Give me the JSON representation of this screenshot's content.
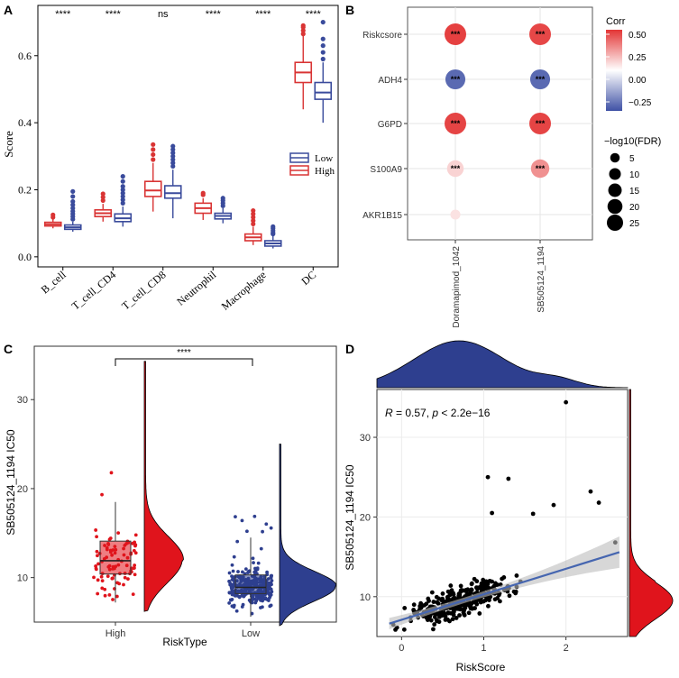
{
  "chart_data": [
    {
      "type": "box",
      "panel_label": "A",
      "ylabel": "Score",
      "ylim": [
        0,
        0.7
      ],
      "yticks": [
        "0.0",
        "0.2",
        "0.4",
        "0.6"
      ],
      "categories": [
        "B_cell",
        "T_cell_CD4",
        "T_cell_CD8",
        "Neutrophil",
        "Macrophage",
        "DC"
      ],
      "significance": [
        "****",
        "****",
        "ns",
        "****",
        "****",
        "****"
      ],
      "legend": {
        "low_label": "Low",
        "high_label": "High",
        "low_color": "#3a4b9c",
        "high_color": "#d93434"
      },
      "series": [
        {
          "name": "High",
          "color": "#d93434",
          "boxes": [
            {
              "min": 0.085,
              "q1": 0.092,
              "median": 0.097,
              "q3": 0.103,
              "max": 0.112,
              "outliers": [
                0.118,
                0.125
              ]
            },
            {
              "min": 0.105,
              "q1": 0.12,
              "median": 0.13,
              "q3": 0.14,
              "max": 0.158,
              "outliers": [
                0.168,
                0.178,
                0.188
              ]
            },
            {
              "min": 0.135,
              "q1": 0.18,
              "median": 0.198,
              "q3": 0.225,
              "max": 0.28,
              "outliers": [
                0.29,
                0.305,
                0.32,
                0.335
              ]
            },
            {
              "min": 0.11,
              "q1": 0.13,
              "median": 0.145,
              "q3": 0.16,
              "max": 0.175,
              "outliers": [
                0.185,
                0.19
              ]
            },
            {
              "min": 0.035,
              "q1": 0.048,
              "median": 0.058,
              "q3": 0.068,
              "max": 0.09,
              "outliers": [
                0.098,
                0.108,
                0.118,
                0.128,
                0.138
              ]
            },
            {
              "min": 0.44,
              "q1": 0.52,
              "median": 0.55,
              "q3": 0.58,
              "max": 0.66,
              "outliers": [
                0.665,
                0.675,
                0.685,
                0.69
              ]
            }
          ]
        },
        {
          "name": "Low",
          "color": "#3a4b9c",
          "boxes": [
            {
              "min": 0.075,
              "q1": 0.082,
              "median": 0.088,
              "q3": 0.095,
              "max": 0.105,
              "outliers": [
                0.112,
                0.12,
                0.128,
                0.136,
                0.145,
                0.155,
                0.165,
                0.18,
                0.195
              ]
            },
            {
              "min": 0.09,
              "q1": 0.105,
              "median": 0.115,
              "q3": 0.128,
              "max": 0.15,
              "outliers": [
                0.16,
                0.17,
                0.18,
                0.19,
                0.2,
                0.21,
                0.225,
                0.24
              ]
            },
            {
              "min": 0.115,
              "q1": 0.175,
              "median": 0.19,
              "q3": 0.212,
              "max": 0.26,
              "outliers": [
                0.27,
                0.28,
                0.29,
                0.3,
                0.31,
                0.32,
                0.33
              ]
            },
            {
              "min": 0.1,
              "q1": 0.113,
              "median": 0.122,
              "q3": 0.13,
              "max": 0.145,
              "outliers": [
                0.152,
                0.16,
                0.168,
                0.175
              ]
            },
            {
              "min": 0.025,
              "q1": 0.032,
              "median": 0.04,
              "q3": 0.048,
              "max": 0.062,
              "outliers": [
                0.068,
                0.072,
                0.078,
                0.085,
                0.09
              ]
            },
            {
              "min": 0.4,
              "q1": 0.47,
              "median": 0.49,
              "q3": 0.52,
              "max": 0.58,
              "outliers": [
                0.59,
                0.61,
                0.63,
                0.65,
                0.7
              ]
            }
          ]
        }
      ]
    },
    {
      "type": "dot",
      "panel_label": "B",
      "rows": [
        "Riskcsore",
        "ADH4",
        "G6PD",
        "S100A9",
        "AKR1B15"
      ],
      "columns": [
        "Doramapimod_1042",
        "SB505124_1194"
      ],
      "corr": [
        [
          0.52,
          0.5
        ],
        [
          -0.3,
          -0.3
        ],
        [
          0.51,
          0.51
        ],
        [
          0.12,
          0.3
        ],
        [
          0.08,
          null
        ]
      ],
      "neglog10FDR": [
        [
          25,
          25
        ],
        [
          20,
          20
        ],
        [
          25,
          25
        ],
        [
          12,
          16
        ],
        [
          2,
          null
        ]
      ],
      "stars": [
        [
          "***",
          "***"
        ],
        [
          "***",
          "***"
        ],
        [
          "***",
          "***"
        ],
        [
          "***",
          "***"
        ],
        [
          "",
          ""
        ]
      ],
      "color_legend": {
        "title": "Corr",
        "ticks": [
          "0.50",
          "0.25",
          "0.00",
          "−0.25"
        ],
        "tick_values": [
          0.5,
          0.25,
          0.0,
          -0.25
        ],
        "range": [
          -0.35,
          0.55
        ],
        "low_color": "#3f51a5",
        "mid_color": "#ffffff",
        "high_color": "#e33535"
      },
      "size_legend": {
        "title": "−log10(FDR)",
        "values": [
          5,
          10,
          15,
          20,
          25
        ]
      }
    },
    {
      "type": "raincloud",
      "panel_label": "C",
      "xlabel": "RiskType",
      "ylabel": "SB505124_1194 IC50",
      "categories": [
        "High",
        "Low"
      ],
      "colors": [
        "#e0141c",
        "#2e3f8f"
      ],
      "ylim": [
        5,
        36
      ],
      "yticks": [
        10,
        20,
        30
      ],
      "significance": "****",
      "boxes": [
        {
          "min": 7.2,
          "q1": 10.4,
          "median": 11.9,
          "q3": 14.1,
          "max": 18.5
        },
        {
          "min": 5.6,
          "q1": 8.2,
          "median": 8.9,
          "q3": 10.3,
          "max": 14.5
        }
      ],
      "violin_peaks": [
        {
          "peak": 12.0,
          "max": 34.3
        },
        {
          "peak": 9.0,
          "max": 25.0
        }
      ]
    },
    {
      "type": "scatter",
      "panel_label": "D",
      "xlabel": "RiskScore",
      "ylabel": "SB505124_1194 IC50",
      "annotation": "R = 0.57, p < 2.2e−16",
      "annotation_r": "R",
      "annotation_r_value": " = 0.57, ",
      "annotation_p": "p",
      "annotation_p_value": " < 2.2e−16",
      "xlim": [
        -0.3,
        2.75
      ],
      "ylim": [
        5,
        36
      ],
      "xticks": [
        0,
        1,
        2
      ],
      "yticks": [
        10,
        20,
        30
      ],
      "regression": {
        "slope": 3.2,
        "intercept": 7.1
      },
      "outlier_points": [
        [
          2.0,
          34.4
        ],
        [
          1.05,
          25.0
        ],
        [
          1.3,
          24.8
        ],
        [
          1.1,
          20.5
        ],
        [
          1.6,
          20.4
        ],
        [
          2.3,
          23.2
        ],
        [
          2.4,
          21.8
        ],
        [
          1.85,
          21.5
        ],
        [
          2.6,
          16.8
        ]
      ],
      "marginal_x_color": "#2e3f8f",
      "marginal_y_color": "#e0141c"
    }
  ]
}
